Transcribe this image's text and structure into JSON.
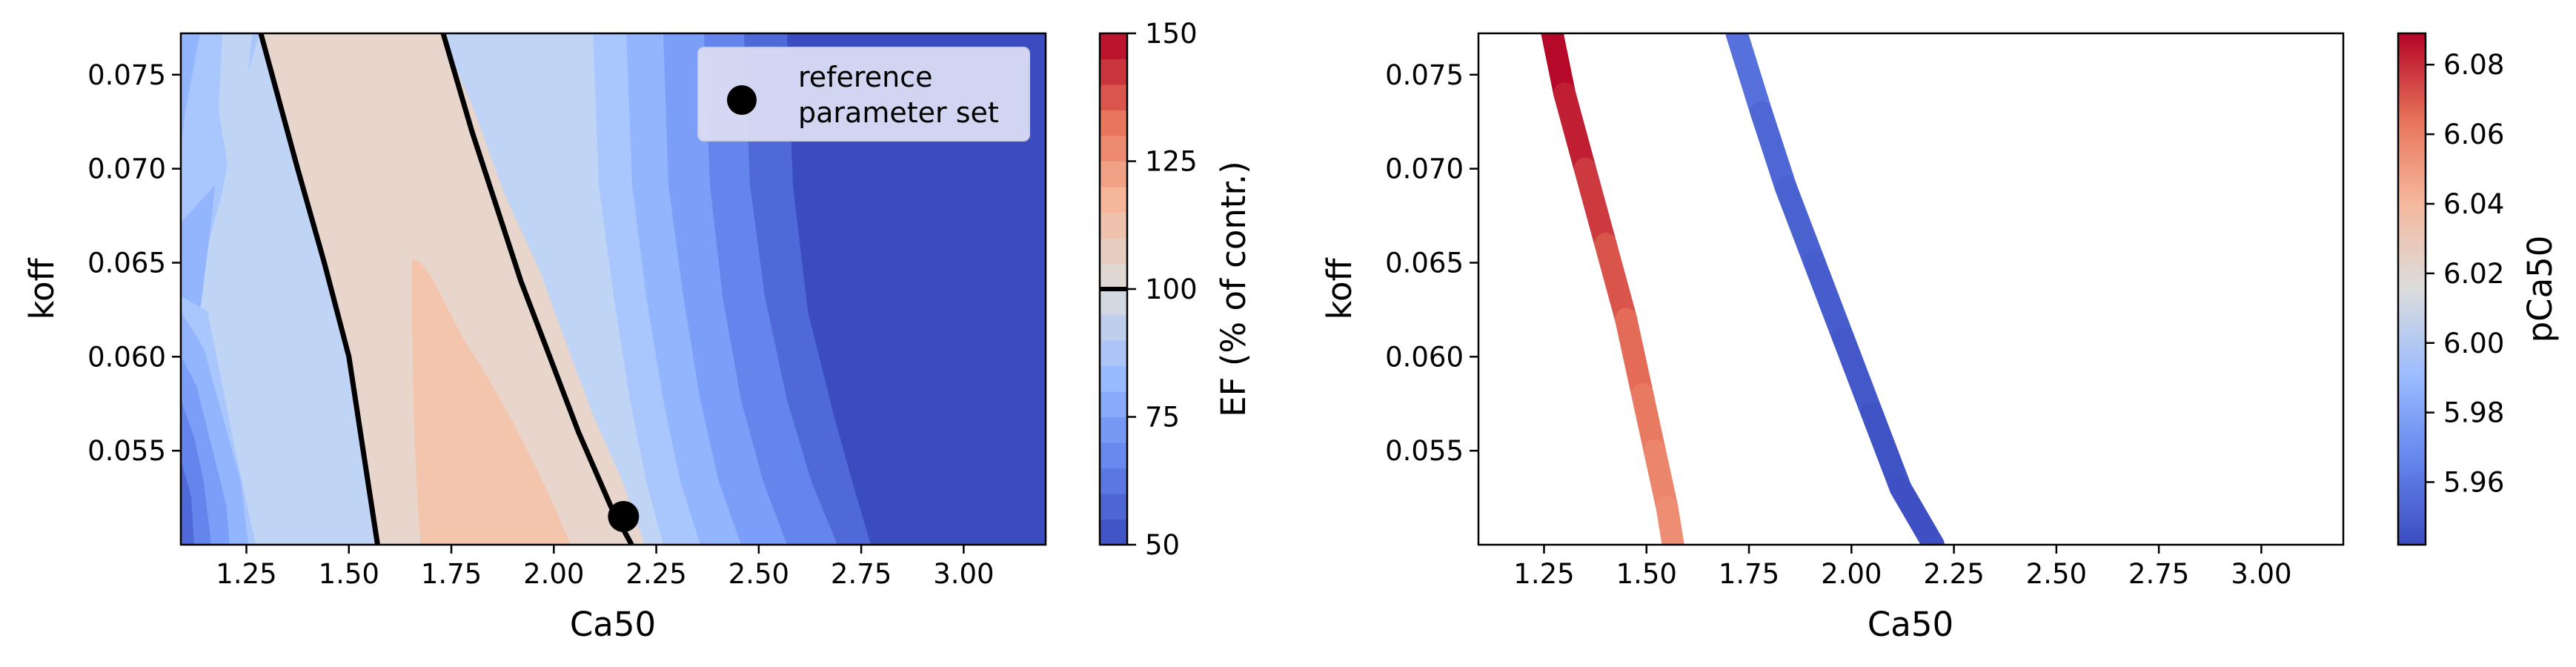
{
  "chart_data": [
    {
      "type": "contour",
      "xlabel": "Ca50",
      "ylabel": "koff",
      "xlim": [
        1.09,
        3.2
      ],
      "ylim": [
        0.05,
        0.0772
      ],
      "xticks": [
        "1.25",
        "1.50",
        "1.75",
        "2.00",
        "2.25",
        "2.50",
        "2.75",
        "3.00"
      ],
      "yticks": [
        "0.055",
        "0.060",
        "0.065",
        "0.070",
        "0.075"
      ],
      "fill_levels": [
        50,
        55,
        60,
        65,
        70,
        75,
        80,
        85,
        90,
        95,
        100,
        105,
        110,
        115,
        120,
        125,
        130,
        135,
        140,
        145,
        150
      ],
      "reference_contour_level": 100,
      "reference_contours": [
        {
          "points": [
            [
              1.285,
              0.0772
            ],
            [
              1.375,
              0.07
            ],
            [
              1.44,
              0.065
            ],
            [
              1.5,
              0.06
            ],
            [
              1.535,
              0.055
            ],
            [
              1.57,
              0.05
            ]
          ]
        },
        {
          "points": [
            [
              1.73,
              0.0772
            ],
            [
              1.8,
              0.072
            ],
            [
              1.86,
              0.068
            ],
            [
              1.92,
              0.064
            ],
            [
              1.99,
              0.06
            ],
            [
              2.06,
              0.056
            ],
            [
              2.14,
              0.052
            ],
            [
              2.19,
              0.05
            ]
          ]
        }
      ],
      "reference_point": {
        "x": 2.17,
        "y": 0.0515,
        "label": "reference\nparameter set"
      },
      "legend": {
        "position": "upper right",
        "entries": [
          "reference\nparameter set"
        ]
      },
      "colorbar": {
        "label": "EF (% of contr.)",
        "ticks": [
          50,
          75,
          100,
          125,
          150
        ],
        "min": 50,
        "max": 150,
        "marked_level": 100,
        "colormap": "coolwarm"
      }
    },
    {
      "type": "contour",
      "xlabel": "Ca50",
      "ylabel": "koff",
      "xlim": [
        1.09,
        3.2
      ],
      "ylim": [
        0.05,
        0.0772
      ],
      "xticks": [
        "1.25",
        "1.50",
        "1.75",
        "2.00",
        "2.25",
        "2.50",
        "2.75",
        "3.00"
      ],
      "yticks": [
        "0.055",
        "0.060",
        "0.065",
        "0.070",
        "0.075"
      ],
      "lines": [
        {
          "points": [
            [
              1.27,
              0.0772
            ],
            [
              1.3,
              0.074
            ],
            [
              1.35,
              0.07
            ],
            [
              1.4,
              0.066
            ],
            [
              1.45,
              0.062
            ],
            [
              1.49,
              0.058
            ],
            [
              1.52,
              0.055
            ],
            [
              1.55,
              0.052
            ],
            [
              1.565,
              0.05
            ]
          ],
          "pca50": [
            6.09,
            6.086,
            6.08,
            6.074,
            6.068,
            6.064,
            6.06,
            6.056,
            6.054
          ]
        },
        {
          "points": [
            [
              1.72,
              0.0772
            ],
            [
              1.78,
              0.073
            ],
            [
              1.84,
              0.069
            ],
            [
              1.91,
              0.065
            ],
            [
              1.98,
              0.061
            ],
            [
              2.05,
              0.057
            ],
            [
              2.12,
              0.053
            ],
            [
              2.2,
              0.05
            ]
          ],
          "pca50": [
            5.96,
            5.955,
            5.952,
            5.95,
            5.948,
            5.946,
            5.944,
            5.943
          ]
        }
      ],
      "colorbar": {
        "label": "pCa50",
        "ticks": [
          "5.96",
          "5.98",
          "6.00",
          "6.02",
          "6.04",
          "6.06",
          "6.08"
        ],
        "min": 5.942,
        "max": 6.089,
        "colormap": "coolwarm"
      }
    }
  ]
}
